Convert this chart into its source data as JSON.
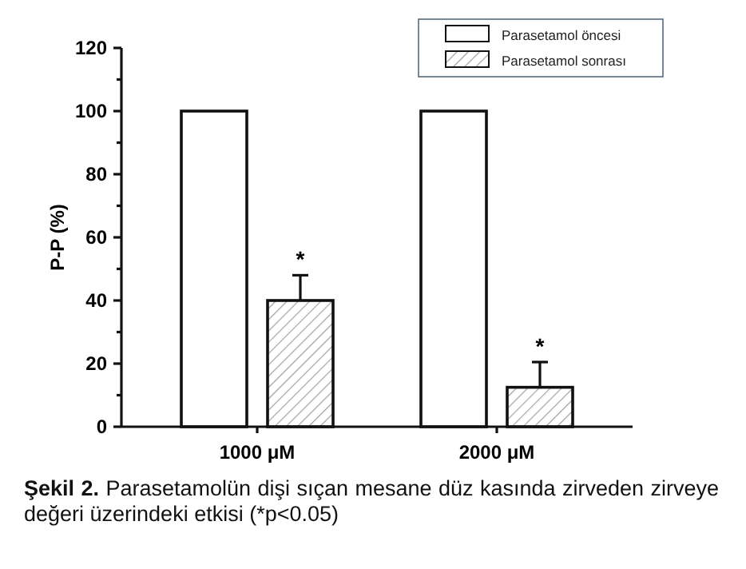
{
  "chart_data": {
    "type": "bar",
    "ylabel": "P-P (%)",
    "categories": [
      "1000 μM",
      "2000 μM"
    ],
    "series": [
      {
        "name": "Parasetamol öncesi",
        "color": "#ffffff",
        "values": [
          100,
          100
        ]
      },
      {
        "name": "Parasetamol sonrası",
        "color": "#111111",
        "values": [
          40,
          12.5
        ],
        "errors": [
          [
            40,
            48
          ],
          [
            12.5,
            20.5
          ]
        ]
      }
    ],
    "ylim": [
      0,
      120
    ],
    "yticks": [
      0,
      {
        "value": 10,
        "label": null
      },
      20,
      {
        "value": 30,
        "label": null
      },
      40,
      {
        "value": 50,
        "label": null
      },
      60,
      {
        "value": 70,
        "label": null
      },
      80,
      {
        "value": 90,
        "label": null
      },
      100,
      {
        "value": 110,
        "label": null
      },
      120
    ],
    "legend": "top right",
    "grid": false,
    "annotations": [
      "*",
      "*",
      "Şekil 2.",
      "Parasetamolün dişi sıçan mesane düz kasında zirveden zirveye değeri üzerindeki etkisi (*p<0.05)"
    ]
  }
}
